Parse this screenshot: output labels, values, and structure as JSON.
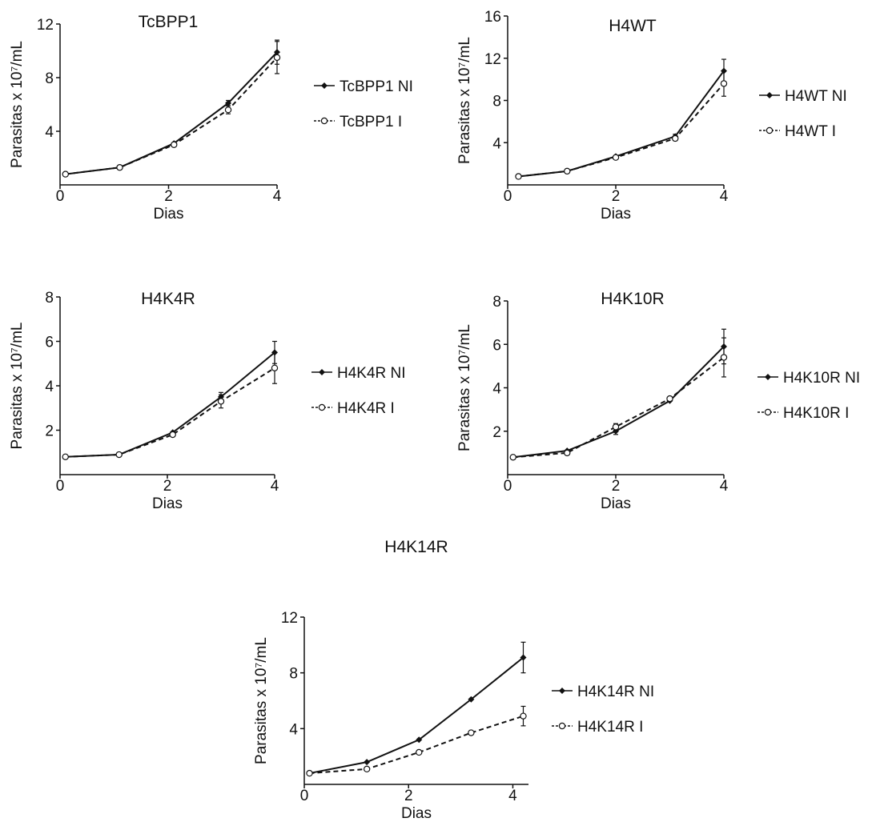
{
  "chart_data": [
    {
      "type": "line",
      "title": "TcBPP1",
      "xlabel": "Dias",
      "ylabel": "Parasitas x 10⁷/mL",
      "xlim": [
        0,
        4
      ],
      "ylim": [
        0,
        12
      ],
      "xticks": [
        "0",
        "2",
        "4"
      ],
      "yticks": [
        "4",
        "8",
        "12"
      ],
      "legend_position": "right",
      "series": [
        {
          "name": "TcBPP1 NI",
          "style": "solid",
          "marker": "filled-diamond",
          "x": [
            0.1,
            1.1,
            2.1,
            3.1,
            4.0
          ],
          "y": [
            0.8,
            1.3,
            3.1,
            6.1,
            9.9
          ],
          "err": [
            0,
            0,
            0,
            0.2,
            0.9
          ]
        },
        {
          "name": "TcBPP1 I",
          "style": "dashed",
          "marker": "open-circle",
          "x": [
            0.1,
            1.1,
            2.1,
            3.1,
            4.0
          ],
          "y": [
            0.8,
            1.3,
            3.0,
            5.6,
            9.5
          ],
          "err": [
            0,
            0,
            0,
            0.3,
            1.2
          ]
        }
      ]
    },
    {
      "type": "line",
      "title": "H4WT",
      "xlabel": "Dias",
      "ylabel": "Parasitas x 10⁷/mL",
      "xlim": [
        0,
        4
      ],
      "ylim": [
        0,
        16
      ],
      "xticks": [
        "0",
        "2",
        "4"
      ],
      "yticks": [
        "4",
        "8",
        "12",
        "16"
      ],
      "legend_position": "right",
      "series": [
        {
          "name": "H4WT NI",
          "style": "solid",
          "marker": "filled-diamond",
          "x": [
            0.2,
            1.1,
            2.0,
            3.1,
            4.0
          ],
          "y": [
            0.8,
            1.3,
            2.7,
            4.6,
            10.8
          ],
          "err": [
            0,
            0,
            0,
            0.2,
            1.1
          ]
        },
        {
          "name": "H4WT I",
          "style": "dashed",
          "marker": "open-circle",
          "x": [
            0.2,
            1.1,
            2.0,
            3.1,
            4.0
          ],
          "y": [
            0.8,
            1.3,
            2.6,
            4.4,
            9.6
          ],
          "err": [
            0,
            0,
            0,
            0.2,
            1.2
          ]
        }
      ]
    },
    {
      "type": "line",
      "title": "H4K4R",
      "xlabel": "Dias",
      "ylabel": "Parasitas x 10⁷/mL",
      "xlim": [
        0,
        4
      ],
      "ylim": [
        0,
        8
      ],
      "xticks": [
        "0",
        "2",
        "4"
      ],
      "yticks": [
        "2",
        "4",
        "6",
        "8"
      ],
      "legend_position": "right",
      "series": [
        {
          "name": "H4K4R NI",
          "style": "solid",
          "marker": "filled-diamond",
          "x": [
            0.1,
            1.1,
            2.1,
            3.0,
            4.0
          ],
          "y": [
            0.8,
            0.9,
            1.9,
            3.5,
            5.5
          ],
          "err": [
            0,
            0,
            0,
            0.2,
            0.5
          ]
        },
        {
          "name": "H4K4R I",
          "style": "dashed",
          "marker": "open-circle",
          "x": [
            0.1,
            1.1,
            2.1,
            3.0,
            4.0
          ],
          "y": [
            0.8,
            0.9,
            1.8,
            3.3,
            4.8
          ],
          "err": [
            0,
            0,
            0,
            0.3,
            0.7
          ]
        }
      ]
    },
    {
      "type": "line",
      "title": "H4K10R",
      "xlabel": "Dias",
      "ylabel": "Parasitas x 10⁷/mL",
      "xlim": [
        0,
        4
      ],
      "ylim": [
        0,
        8
      ],
      "xticks": [
        "0",
        "2",
        "4"
      ],
      "yticks": [
        "2",
        "4",
        "6",
        "8"
      ],
      "legend_position": "right",
      "series": [
        {
          "name": "H4K10R NI",
          "style": "solid",
          "marker": "filled-diamond",
          "x": [
            0.1,
            1.1,
            2.0,
            3.0,
            4.0
          ],
          "y": [
            0.8,
            1.1,
            2.0,
            3.4,
            5.9
          ],
          "err": [
            0,
            0,
            0.15,
            0,
            0.8
          ]
        },
        {
          "name": "H4K10R I",
          "style": "dashed",
          "marker": "open-circle",
          "x": [
            0.1,
            1.1,
            2.0,
            3.0,
            4.0
          ],
          "y": [
            0.8,
            1.0,
            2.2,
            3.5,
            5.4
          ],
          "err": [
            0,
            0,
            0.15,
            0,
            0.9
          ]
        }
      ]
    },
    {
      "type": "line",
      "title": "H4K14R",
      "xlabel": "Dias",
      "ylabel": "Parasitas x 10⁷/mL",
      "xlim": [
        0,
        4.3
      ],
      "ylim": [
        0,
        12
      ],
      "xticks": [
        "0",
        "2",
        "4"
      ],
      "yticks": [
        "4",
        "8",
        "12"
      ],
      "legend_position": "right",
      "series": [
        {
          "name": "H4K14R NI",
          "style": "solid",
          "marker": "filled-diamond",
          "x": [
            0.1,
            1.2,
            2.2,
            3.2,
            4.2
          ],
          "y": [
            0.8,
            1.6,
            3.2,
            6.1,
            9.1
          ],
          "err": [
            0,
            0,
            0,
            0,
            1.1
          ]
        },
        {
          "name": "H4K14R I",
          "style": "dashed",
          "marker": "open-circle",
          "x": [
            0.1,
            1.2,
            2.2,
            3.2,
            4.2
          ],
          "y": [
            0.8,
            1.1,
            2.3,
            3.7,
            4.9
          ],
          "err": [
            0,
            0,
            0,
            0,
            0.7
          ]
        }
      ]
    }
  ]
}
